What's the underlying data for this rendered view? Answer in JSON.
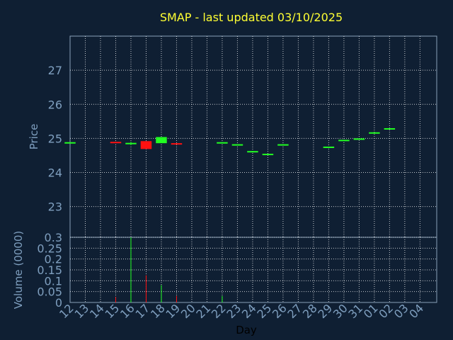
{
  "title": "SMAP - last updated 03/10/2025",
  "colors": {
    "background": "#0f1f33",
    "title": "#ffff33",
    "axis_text": "#7f9fbf",
    "up": "#22ff22",
    "down": "#ff1111",
    "grid": "#ffffff"
  },
  "chart_data": [
    {
      "type": "candlestick",
      "ylabel": "Price",
      "ylim": [
        22.1,
        28.0
      ],
      "yticks": [
        23,
        24,
        25,
        26,
        27
      ],
      "grid": true,
      "categories": [
        "12",
        "13",
        "14",
        "15",
        "16",
        "17",
        "18",
        "19",
        "20",
        "21",
        "22",
        "23",
        "24",
        "25",
        "26",
        "27",
        "28",
        "29",
        "30",
        "31",
        "01",
        "02",
        "03",
        "04"
      ],
      "candles": [
        {
          "day": "12",
          "open": 24.88,
          "close": 24.89,
          "high": 24.89,
          "low": 24.88
        },
        {
          "day": "15",
          "open": 24.9,
          "close": 24.86,
          "high": 24.9,
          "low": 24.86
        },
        {
          "day": "16",
          "open": 24.84,
          "close": 24.87,
          "high": 24.9,
          "low": 24.8
        },
        {
          "day": "17",
          "open": 24.92,
          "close": 24.69,
          "high": 24.92,
          "low": 24.69
        },
        {
          "day": "18",
          "open": 24.86,
          "close": 25.04,
          "high": 25.04,
          "low": 24.86
        },
        {
          "day": "19",
          "open": 24.86,
          "close": 24.84,
          "high": 24.86,
          "low": 24.84
        },
        {
          "day": "22",
          "open": 24.85,
          "close": 24.89,
          "high": 24.89,
          "low": 24.85
        },
        {
          "day": "23",
          "open": 24.81,
          "close": 24.83,
          "high": 24.83,
          "low": 24.81
        },
        {
          "day": "24",
          "open": 24.61,
          "close": 24.63,
          "high": 24.63,
          "low": 24.61
        },
        {
          "day": "25",
          "open": 24.53,
          "close": 24.55,
          "high": 24.55,
          "low": 24.53
        },
        {
          "day": "26",
          "open": 24.81,
          "close": 24.83,
          "high": 24.83,
          "low": 24.81
        },
        {
          "day": "29",
          "open": 24.74,
          "close": 24.76,
          "high": 24.76,
          "low": 24.74
        },
        {
          "day": "30",
          "open": 24.94,
          "close": 24.96,
          "high": 24.96,
          "low": 24.94
        },
        {
          "day": "31",
          "open": 24.98,
          "close": 25.0,
          "high": 25.0,
          "low": 24.98
        },
        {
          "day": "01",
          "open": 25.16,
          "close": 25.18,
          "high": 25.18,
          "low": 25.16
        },
        {
          "day": "02",
          "open": 25.28,
          "close": 25.3,
          "high": 25.3,
          "low": 25.28
        }
      ]
    },
    {
      "type": "bar",
      "ylabel": "Volume (0000)",
      "xlabel": "Day",
      "ylim": [
        0,
        0.3
      ],
      "yticks": [
        "0",
        "0.05",
        "0.1",
        "0.15",
        "0.2",
        "0.25",
        "0.3"
      ],
      "grid": true,
      "categories": [
        "12",
        "13",
        "14",
        "15",
        "16",
        "17",
        "18",
        "19",
        "20",
        "21",
        "22",
        "23",
        "24",
        "25",
        "26",
        "27",
        "28",
        "29",
        "30",
        "31",
        "01",
        "02",
        "03",
        "04"
      ],
      "bars": [
        {
          "day": "15",
          "value": 0.025,
          "dir": "down"
        },
        {
          "day": "16",
          "value": 0.3,
          "dir": "up"
        },
        {
          "day": "17",
          "value": 0.125,
          "dir": "down"
        },
        {
          "day": "18",
          "value": 0.08,
          "dir": "up"
        },
        {
          "day": "19",
          "value": 0.03,
          "dir": "down"
        },
        {
          "day": "22",
          "value": 0.03,
          "dir": "up"
        }
      ]
    }
  ]
}
